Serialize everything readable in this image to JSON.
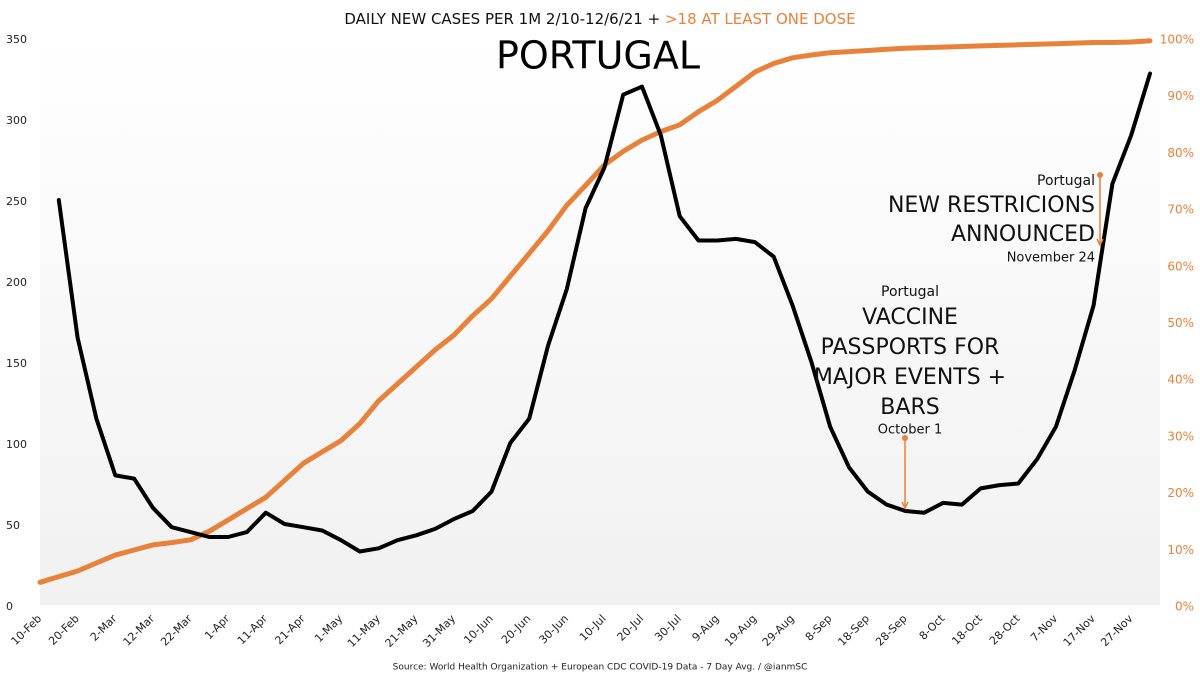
{
  "chart_data": {
    "type": "line",
    "title": "DAILY NEW CASES PER 1M 2/10-12/6/21 +",
    "subtitle": "PORTUGAL",
    "source": "Source: World Health Organization + European CDC COVID-19 Data - 7 Day Avg. /  @ianmSC",
    "categories": [
      "10-Feb",
      null,
      "20-Feb",
      null,
      "2-Mar",
      null,
      "12-Mar",
      null,
      "22-Mar",
      null,
      "1-Apr",
      null,
      "11-Apr",
      null,
      "21-Apr",
      null,
      "1-May",
      null,
      "11-May",
      null,
      "21-May",
      null,
      "31-May",
      null,
      "10-Jun",
      null,
      "20-Jun",
      null,
      "30-Jun",
      null,
      "10-Jul",
      null,
      "20-Jul",
      null,
      "30-Jul",
      null,
      "9-Aug",
      null,
      "19-Aug",
      null,
      "29-Aug",
      null,
      "8-Sep",
      null,
      "18-Sep",
      null,
      "28-Sep",
      null,
      "8-Oct",
      null,
      "18-Oct",
      null,
      "28-Oct",
      null,
      "7-Nov",
      null,
      "17-Nov",
      null,
      "27-Nov",
      null
    ],
    "series": [
      {
        "color": "#000000",
        "values": [
          null,
          250,
          165,
          115,
          80,
          78,
          60,
          48,
          45,
          42,
          42,
          45,
          57,
          50,
          48,
          46,
          40,
          33,
          35,
          40,
          43,
          47,
          53,
          58,
          70,
          100,
          115,
          160,
          195,
          245,
          270,
          315,
          320,
          290,
          240,
          225,
          225,
          226,
          224,
          215,
          185,
          150,
          110,
          85,
          70,
          62,
          58,
          57,
          63,
          62,
          72,
          74,
          75,
          90,
          110,
          145,
          185,
          260,
          290,
          328
        ]
      },
      {
        "name": ">18 AT LEAST ONE DOSE",
        "color": "#e8823a",
        "axis": "y2",
        "values": [
          4,
          5,
          6,
          7.4,
          8.8,
          9.7,
          10.6,
          11,
          11.5,
          13,
          15,
          17,
          19,
          22,
          25,
          27,
          29,
          32,
          36,
          39,
          42,
          45,
          47.6,
          51,
          54,
          58,
          62,
          66,
          70.5,
          74,
          77.6,
          80,
          82,
          83.5,
          84.7,
          87,
          89,
          91.5,
          94,
          95.5,
          96.5,
          97,
          97.4,
          97.6,
          97.8,
          98,
          98.2,
          98.3,
          98.4,
          98.5,
          98.6,
          98.7,
          98.8,
          98.9,
          99,
          99.1,
          99.2,
          99.2,
          99.3,
          99.5
        ]
      }
    ],
    "ylim": [
      0,
      350
    ],
    "yticks": [
      0,
      50,
      100,
      150,
      200,
      250,
      300,
      350
    ],
    "y2lim": [
      0,
      100
    ],
    "y2ticks": [
      {
        "value": 0,
        "label": "0%"
      },
      {
        "value": 10,
        "label": "10%"
      },
      {
        "value": 20,
        "label": "20%"
      },
      {
        "value": 30,
        "label": "30%"
      },
      {
        "value": 40,
        "label": "40%"
      },
      {
        "value": 50,
        "label": "50%"
      },
      {
        "value": 60,
        "label": "60%"
      },
      {
        "value": 70,
        "label": "70%"
      },
      {
        "value": 80,
        "label": "80%"
      },
      {
        "value": 90,
        "label": "90%"
      },
      {
        "value": 100,
        "label": "100%"
      }
    ],
    "annotations": [
      {
        "label": "Portugal",
        "text": [
          "VACCINE",
          "PASSPORTS FOR",
          "MAJOR EVENTS +",
          "BARS"
        ],
        "date": "October 1"
      },
      {
        "label": "Portugal",
        "text": [
          "NEW RESTRICIONS",
          "ANNOUNCED"
        ],
        "date": "November 24"
      }
    ]
  }
}
